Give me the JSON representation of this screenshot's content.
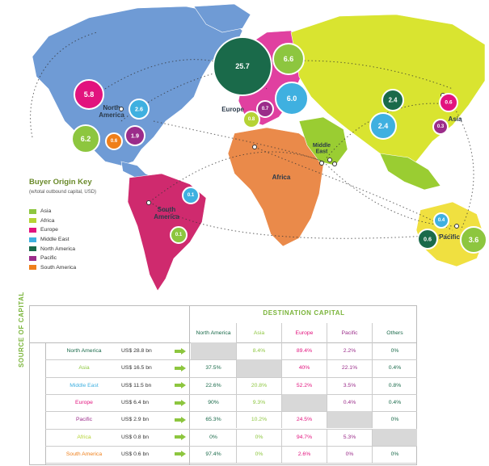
{
  "colors": {
    "asia": "#8dc63f",
    "africa": "#b5d335",
    "europe": "#e2137e",
    "middle_east": "#3fb0e0",
    "north_america": "#1a6a4a",
    "pacific": "#9b2c8a",
    "south_america": "#ef7f1a",
    "land_north_america": "#6f9bd5",
    "land_south_america": "#cf2a6e",
    "land_europe": "#e040a0",
    "land_africa": "#ea8a4a",
    "land_asia": "#d9e430",
    "land_middle_east": "#9acd32",
    "land_pacific": "#f0e040"
  },
  "regions": {
    "north_america": "North\nAmerica",
    "south_america": "South\nAmerica",
    "europe": "Europe",
    "africa": "Africa",
    "middle_east": "Middle\nEast",
    "asia": "Asia",
    "pacific": "Pacific"
  },
  "bubbles": [
    {
      "value": "5.8",
      "color": "europe"
    },
    {
      "value": "2.6",
      "color": "middle_east"
    },
    {
      "value": "6.2",
      "color": "asia"
    },
    {
      "value": "0.6",
      "color": "south_america"
    },
    {
      "value": "1.9",
      "color": "pacific"
    },
    {
      "value": "25.7",
      "color": "north_america"
    },
    {
      "value": "6.6",
      "color": "asia"
    },
    {
      "value": "6.0",
      "color": "middle_east"
    },
    {
      "value": "0.7",
      "color": "pacific"
    },
    {
      "value": "0.8",
      "color": "africa"
    },
    {
      "value": "2.4",
      "color": "north_america"
    },
    {
      "value": "2.4",
      "color": "middle_east"
    },
    {
      "value": "0.6",
      "color": "europe"
    },
    {
      "value": "0.3",
      "color": "pacific"
    },
    {
      "value": "0.1",
      "color": "middle_east"
    },
    {
      "value": "0.1",
      "color": "asia"
    },
    {
      "value": "0.4",
      "color": "middle_east"
    },
    {
      "value": "0.6",
      "color": "north_america"
    },
    {
      "value": "3.6",
      "color": "asia"
    }
  ],
  "key": {
    "title": "Buyer Origin Key",
    "subtitle": "(w/total outbound capital, USD)",
    "items": [
      {
        "label": "Asia",
        "color": "asia"
      },
      {
        "label": "Africa",
        "color": "africa"
      },
      {
        "label": "Europe",
        "color": "europe"
      },
      {
        "label": "Middle East",
        "color": "middle_east"
      },
      {
        "label": "North America",
        "color": "north_america"
      },
      {
        "label": "Pacific",
        "color": "pacific"
      },
      {
        "label": "South America",
        "color": "south_america"
      }
    ]
  },
  "table": {
    "title": "DESTINATION CAPITAL",
    "row_axis_title": "SOURCE OF CAPITAL",
    "columns": [
      {
        "label": "North America",
        "color": "north_america"
      },
      {
        "label": "Asia",
        "color": "asia"
      },
      {
        "label": "Europe",
        "color": "europe"
      },
      {
        "label": "Pacific",
        "color": "pacific"
      },
      {
        "label": "Others",
        "color": "north_america"
      }
    ],
    "rows": [
      {
        "source": "North America",
        "color": "north_america",
        "total": "US$ 28.8 bn",
        "values": [
          "",
          "8.4%",
          "89.4%",
          "2.2%",
          "0%"
        ]
      },
      {
        "source": "Asia",
        "color": "asia",
        "total": "US$ 16.5 bn",
        "values": [
          "37.5%",
          "",
          "40%",
          "22.1%",
          "0.4%"
        ]
      },
      {
        "source": "Middle East",
        "color": "middle_east",
        "total": "US$ 11.5 bn",
        "values": [
          "22.6%",
          "20.8%",
          "52.2%",
          "3.5%",
          "0.8%"
        ]
      },
      {
        "source": "Europe",
        "color": "europe",
        "total": "US$ 6.4 bn",
        "values": [
          "90%",
          "9.3%",
          "",
          "0.4%",
          "0.4%"
        ]
      },
      {
        "source": "Pacific",
        "color": "pacific",
        "total": "US$ 2.9 bn",
        "values": [
          "65.3%",
          "10.2%",
          "24.5%",
          "",
          "0%"
        ]
      },
      {
        "source": "Africa",
        "color": "africa",
        "total": "US$ 0.8 bn",
        "values": [
          "0%",
          "0%",
          "94.7%",
          "5.3%",
          ""
        ]
      },
      {
        "source": "South America",
        "color": "south_america",
        "total": "US$ 0.6 bn",
        "values": [
          "97.4%",
          "0%",
          "2.6%",
          "0%",
          "0%"
        ]
      }
    ]
  }
}
